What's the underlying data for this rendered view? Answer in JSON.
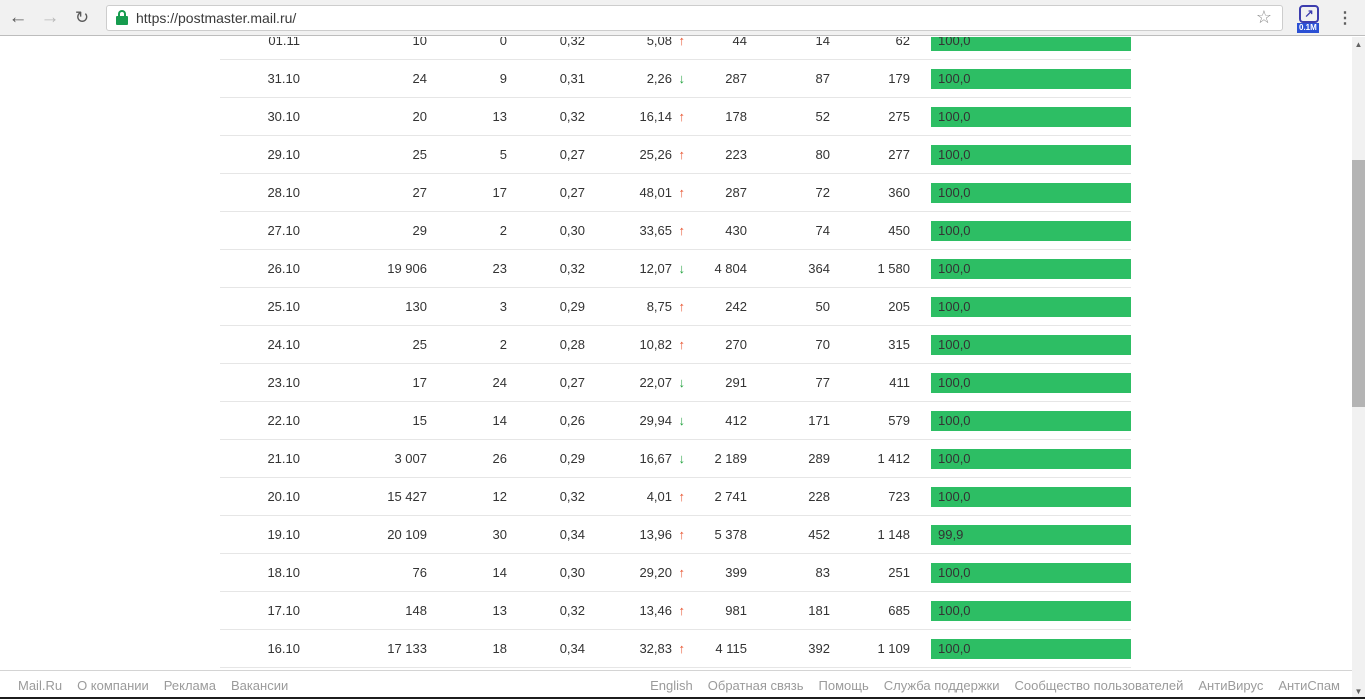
{
  "browser": {
    "url": "https://postmaster.mail.ru/",
    "back_icon": "←",
    "forward_icon": "→",
    "reload_icon": "↻",
    "star_icon": "☆",
    "extension_glyph": "↗",
    "extension_badge": "0.1M",
    "menu_icon": "⋮"
  },
  "colors": {
    "bar_green": "#2dbe64",
    "arrow_up_red": "#e8542f",
    "arrow_down_green": "#23a33f",
    "extension_badge_blue": "#2b50d4",
    "lock_green": "#179c4f"
  },
  "chart_data": {
    "type": "table",
    "note": "postmaster.mail.ru daily mail statistics; columns unlabeled (header scrolled out of view); last column is delivery percentage rendered as green bar"
  },
  "table": {
    "rows": [
      {
        "date": "01.11",
        "v1": "10",
        "v2": "0",
        "v3": "0,32",
        "change": "5,08",
        "trend": "up",
        "v5": "44",
        "v6": "14",
        "v7": "62",
        "percent": "100,0",
        "bar_pct": 100
      },
      {
        "date": "31.10",
        "v1": "24",
        "v2": "9",
        "v3": "0,31",
        "change": "2,26",
        "trend": "down",
        "v5": "287",
        "v6": "87",
        "v7": "179",
        "percent": "100,0",
        "bar_pct": 100
      },
      {
        "date": "30.10",
        "v1": "20",
        "v2": "13",
        "v3": "0,32",
        "change": "16,14",
        "trend": "up",
        "v5": "178",
        "v6": "52",
        "v7": "275",
        "percent": "100,0",
        "bar_pct": 100
      },
      {
        "date": "29.10",
        "v1": "25",
        "v2": "5",
        "v3": "0,27",
        "change": "25,26",
        "trend": "up",
        "v5": "223",
        "v6": "80",
        "v7": "277",
        "percent": "100,0",
        "bar_pct": 100
      },
      {
        "date": "28.10",
        "v1": "27",
        "v2": "17",
        "v3": "0,27",
        "change": "48,01",
        "trend": "up",
        "v5": "287",
        "v6": "72",
        "v7": "360",
        "percent": "100,0",
        "bar_pct": 100
      },
      {
        "date": "27.10",
        "v1": "29",
        "v2": "2",
        "v3": "0,30",
        "change": "33,65",
        "trend": "up",
        "v5": "430",
        "v6": "74",
        "v7": "450",
        "percent": "100,0",
        "bar_pct": 100
      },
      {
        "date": "26.10",
        "v1": "19 906",
        "v2": "23",
        "v3": "0,32",
        "change": "12,07",
        "trend": "down",
        "v5": "4 804",
        "v6": "364",
        "v7": "1 580",
        "percent": "100,0",
        "bar_pct": 100
      },
      {
        "date": "25.10",
        "v1": "130",
        "v2": "3",
        "v3": "0,29",
        "change": "8,75",
        "trend": "up",
        "v5": "242",
        "v6": "50",
        "v7": "205",
        "percent": "100,0",
        "bar_pct": 100
      },
      {
        "date": "24.10",
        "v1": "25",
        "v2": "2",
        "v3": "0,28",
        "change": "10,82",
        "trend": "up",
        "v5": "270",
        "v6": "70",
        "v7": "315",
        "percent": "100,0",
        "bar_pct": 100
      },
      {
        "date": "23.10",
        "v1": "17",
        "v2": "24",
        "v3": "0,27",
        "change": "22,07",
        "trend": "down",
        "v5": "291",
        "v6": "77",
        "v7": "411",
        "percent": "100,0",
        "bar_pct": 100
      },
      {
        "date": "22.10",
        "v1": "15",
        "v2": "14",
        "v3": "0,26",
        "change": "29,94",
        "trend": "down",
        "v5": "412",
        "v6": "171",
        "v7": "579",
        "percent": "100,0",
        "bar_pct": 100
      },
      {
        "date": "21.10",
        "v1": "3 007",
        "v2": "26",
        "v3": "0,29",
        "change": "16,67",
        "trend": "down",
        "v5": "2 189",
        "v6": "289",
        "v7": "1 412",
        "percent": "100,0",
        "bar_pct": 100
      },
      {
        "date": "20.10",
        "v1": "15 427",
        "v2": "12",
        "v3": "0,32",
        "change": "4,01",
        "trend": "up",
        "v5": "2 741",
        "v6": "228",
        "v7": "723",
        "percent": "100,0",
        "bar_pct": 100
      },
      {
        "date": "19.10",
        "v1": "20 109",
        "v2": "30",
        "v3": "0,34",
        "change": "13,96",
        "trend": "up",
        "v5": "5 378",
        "v6": "452",
        "v7": "1 148",
        "percent": "99,9",
        "bar_pct": 99.9
      },
      {
        "date": "18.10",
        "v1": "76",
        "v2": "14",
        "v3": "0,30",
        "change": "29,20",
        "trend": "up",
        "v5": "399",
        "v6": "83",
        "v7": "251",
        "percent": "100,0",
        "bar_pct": 100
      },
      {
        "date": "17.10",
        "v1": "148",
        "v2": "13",
        "v3": "0,32",
        "change": "13,46",
        "trend": "up",
        "v5": "981",
        "v6": "181",
        "v7": "685",
        "percent": "100,0",
        "bar_pct": 100
      },
      {
        "date": "16.10",
        "v1": "17 133",
        "v2": "18",
        "v3": "0,34",
        "change": "32,83",
        "trend": "up",
        "v5": "4 115",
        "v6": "392",
        "v7": "1 109",
        "percent": "100,0",
        "bar_pct": 100
      }
    ]
  },
  "footer": {
    "left": [
      "Mail.Ru",
      "О компании",
      "Реклама",
      "Вакансии"
    ],
    "right": [
      "English",
      "Обратная связь",
      "Помощь",
      "Служба поддержки",
      "Сообщество пользователей",
      "АнтиВирус",
      "АнтиСпам"
    ]
  },
  "scrollbar": {
    "up_icon": "▲",
    "down_icon": "▼"
  }
}
